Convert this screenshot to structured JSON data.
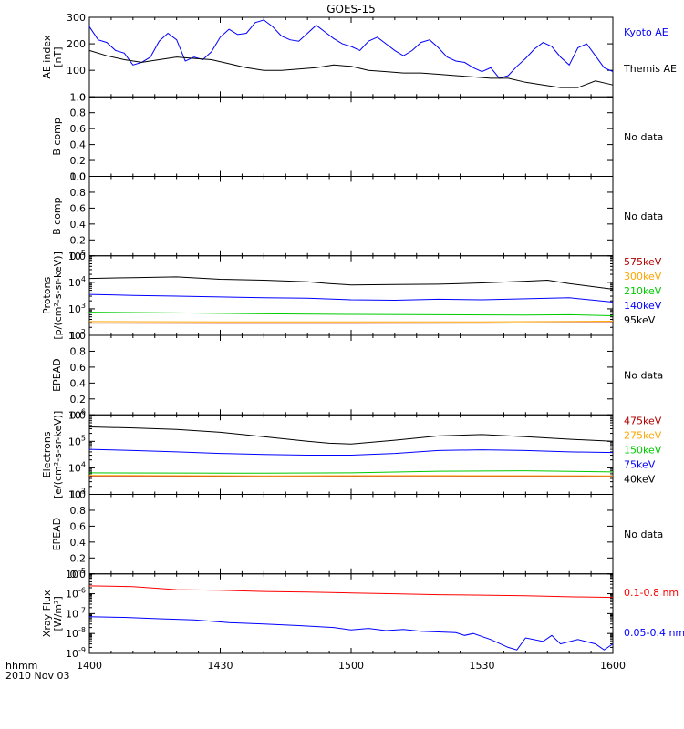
{
  "title": "GOES-15",
  "time_axis": {
    "unit_label": "hhmm",
    "date_label": "2010 Nov 03",
    "ticks": [
      {
        "t": 0,
        "label": "1400"
      },
      {
        "t": 30,
        "label": "1430"
      },
      {
        "t": 60,
        "label": "1500"
      },
      {
        "t": 90,
        "label": "1530"
      },
      {
        "t": 120,
        "label": "1600"
      }
    ]
  },
  "colors": {
    "black": "#000000",
    "blue": "#0000ff",
    "green": "#00cc00",
    "orange": "#ffa500",
    "red": "#cc0000",
    "darkred": "#b00000",
    "xray_red": "#ff0000"
  },
  "no_data_label": "No data",
  "chart_data": [
    {
      "id": "ae",
      "type": "line",
      "ylabel_lines": [
        "AE index",
        "[nT]"
      ],
      "ylim": [
        0,
        300
      ],
      "yticks": [
        0,
        100,
        200,
        300
      ],
      "ytick_labels": [
        "0",
        "100",
        "200",
        "300"
      ],
      "series": [
        {
          "name": "Kyoto AE",
          "color": "blue",
          "x": [
            0,
            2,
            4,
            6,
            8,
            10,
            12,
            14,
            16,
            18,
            20,
            22,
            24,
            26,
            28,
            30,
            32,
            34,
            36,
            38,
            40,
            42,
            44,
            46,
            48,
            50,
            52,
            54,
            56,
            58,
            60,
            62,
            64,
            66,
            68,
            70,
            72,
            74,
            76,
            78,
            80,
            82,
            84,
            86,
            88,
            90,
            92,
            94,
            96,
            98,
            100,
            102,
            104,
            106,
            108,
            110,
            112,
            114,
            116,
            118,
            120
          ],
          "y": [
            265,
            215,
            205,
            175,
            165,
            120,
            130,
            150,
            210,
            240,
            215,
            135,
            150,
            140,
            170,
            225,
            255,
            235,
            240,
            280,
            290,
            265,
            230,
            215,
            210,
            240,
            270,
            245,
            220,
            200,
            190,
            175,
            210,
            225,
            200,
            175,
            155,
            175,
            205,
            215,
            185,
            150,
            135,
            130,
            110,
            95,
            110,
            70,
            80,
            115,
            145,
            180,
            205,
            190,
            150,
            120,
            185,
            200,
            155,
            110,
            95
          ]
        },
        {
          "name": "Themis AE",
          "color": "black",
          "x": [
            0,
            4,
            8,
            12,
            16,
            20,
            24,
            28,
            32,
            36,
            40,
            44,
            48,
            52,
            56,
            60,
            64,
            68,
            72,
            76,
            80,
            84,
            88,
            92,
            96,
            100,
            104,
            108,
            112,
            116,
            120
          ],
          "y": [
            175,
            155,
            140,
            130,
            140,
            150,
            145,
            140,
            125,
            110,
            100,
            100,
            105,
            110,
            120,
            115,
            100,
            95,
            90,
            90,
            85,
            80,
            75,
            70,
            70,
            55,
            45,
            35,
            35,
            60,
            45
          ]
        }
      ]
    },
    {
      "id": "b1",
      "type": "line",
      "no_data": true,
      "ylabel_lines": [
        "B comp"
      ],
      "ylim": [
        0,
        1
      ],
      "yticks": [
        0,
        0.2,
        0.4,
        0.6,
        0.8,
        1.0
      ],
      "ytick_labels": [
        "0.0",
        "0.2",
        "0.4",
        "0.6",
        "0.8",
        "1.0"
      ]
    },
    {
      "id": "b2",
      "type": "line",
      "no_data": true,
      "ylabel_lines": [
        "B comp"
      ],
      "ylim": [
        0,
        1
      ],
      "yticks": [
        0,
        0.2,
        0.4,
        0.6,
        0.8,
        1.0
      ],
      "ytick_labels": [
        "0.0",
        "0.2",
        "0.4",
        "0.6",
        "0.8",
        "1.0"
      ]
    },
    {
      "id": "protons",
      "type": "line",
      "log": true,
      "ylabel_lines": [
        "Protons",
        "[p/(cm²-s-sr-keV)]"
      ],
      "ylim": [
        100,
        100000
      ],
      "yticks": [
        100,
        1000,
        10000,
        100000
      ],
      "ytick_exponents": [
        "2",
        "3",
        "4",
        "5"
      ],
      "legend": [
        {
          "name": "575keV",
          "color": "darkred"
        },
        {
          "name": "300keV",
          "color": "orange"
        },
        {
          "name": "210keV",
          "color": "green"
        },
        {
          "name": "140keV",
          "color": "blue"
        },
        {
          "name": "95keV",
          "color": "black"
        }
      ],
      "series": [
        {
          "name": "95keV",
          "color": "black",
          "x": [
            0,
            10,
            20,
            30,
            40,
            50,
            55,
            60,
            70,
            80,
            90,
            100,
            105,
            110,
            120
          ],
          "y": [
            14000,
            15000,
            16000,
            13000,
            12000,
            10500,
            9000,
            8000,
            8200,
            8500,
            9500,
            11000,
            12000,
            9000,
            5500
          ]
        },
        {
          "name": "140keV",
          "color": "blue",
          "x": [
            0,
            10,
            20,
            30,
            40,
            50,
            60,
            70,
            80,
            90,
            100,
            110,
            120
          ],
          "y": [
            3500,
            3200,
            3000,
            2800,
            2600,
            2500,
            2200,
            2100,
            2300,
            2200,
            2400,
            2600,
            1800
          ]
        },
        {
          "name": "210keV",
          "color": "green",
          "x": [
            0,
            20,
            40,
            60,
            80,
            100,
            110,
            120
          ],
          "y": [
            750,
            700,
            650,
            620,
            600,
            580,
            600,
            550
          ]
        },
        {
          "name": "300keV",
          "color": "orange",
          "x": [
            0,
            30,
            60,
            90,
            120
          ],
          "y": [
            330,
            320,
            320,
            320,
            340
          ]
        },
        {
          "name": "575keV",
          "color": "darkred",
          "x": [
            0,
            30,
            60,
            90,
            120
          ],
          "y": [
            290,
            285,
            285,
            290,
            300
          ]
        }
      ]
    },
    {
      "id": "epead1",
      "type": "line",
      "no_data": true,
      "ylabel_lines": [
        "EPEAD"
      ],
      "ylim": [
        0,
        1
      ],
      "yticks": [
        0,
        0.2,
        0.4,
        0.6,
        0.8,
        1.0
      ],
      "ytick_labels": [
        "0.0",
        "0.2",
        "0.4",
        "0.6",
        "0.8",
        "1.0"
      ]
    },
    {
      "id": "electrons",
      "type": "line",
      "log": true,
      "ylabel_lines": [
        "Electrons",
        "[e/(cm²-s-sr-keV)]"
      ],
      "ylim": [
        1000,
        1000000
      ],
      "yticks": [
        1000,
        10000,
        100000,
        1000000
      ],
      "ytick_exponents": [
        "3",
        "4",
        "5",
        "6"
      ],
      "legend": [
        {
          "name": "475keV",
          "color": "darkred"
        },
        {
          "name": "275keV",
          "color": "orange"
        },
        {
          "name": "150keV",
          "color": "green"
        },
        {
          "name": "75keV",
          "color": "blue"
        },
        {
          "name": "40keV",
          "color": "black"
        }
      ],
      "series": [
        {
          "name": "40keV",
          "color": "black",
          "x": [
            0,
            10,
            20,
            30,
            40,
            50,
            55,
            60,
            70,
            80,
            90,
            100,
            110,
            120
          ],
          "y": [
            350000,
            320000,
            280000,
            220000,
            150000,
            100000,
            85000,
            80000,
            110000,
            160000,
            180000,
            150000,
            120000,
            100000
          ]
        },
        {
          "name": "75keV",
          "color": "blue",
          "x": [
            0,
            10,
            20,
            30,
            40,
            50,
            60,
            70,
            80,
            90,
            100,
            110,
            120
          ],
          "y": [
            50000,
            45000,
            40000,
            35000,
            32000,
            30000,
            30000,
            35000,
            45000,
            48000,
            45000,
            40000,
            38000
          ]
        },
        {
          "name": "150keV",
          "color": "green",
          "x": [
            0,
            20,
            40,
            60,
            80,
            100,
            120
          ],
          "y": [
            6500,
            6400,
            6300,
            6500,
            7500,
            7800,
            7000
          ]
        },
        {
          "name": "275keV",
          "color": "orange",
          "x": [
            0,
            40,
            80,
            120
          ],
          "y": [
            5200,
            5000,
            5100,
            5000
          ]
        },
        {
          "name": "475keV",
          "color": "darkred",
          "x": [
            0,
            40,
            80,
            120
          ],
          "y": [
            4700,
            4600,
            4650,
            4600
          ]
        }
      ]
    },
    {
      "id": "epead2",
      "type": "line",
      "no_data": true,
      "ylabel_lines": [
        "EPEAD"
      ],
      "ylim": [
        0,
        1
      ],
      "yticks": [
        0,
        0.2,
        0.4,
        0.6,
        0.8,
        1.0
      ],
      "ytick_labels": [
        "0.0",
        "0.2",
        "0.4",
        "0.6",
        "0.8",
        "1.0"
      ]
    },
    {
      "id": "xray",
      "type": "line",
      "log": true,
      "ylabel_lines": [
        "Xray Flux",
        "[W/m²]"
      ],
      "ylim": [
        1e-09,
        1e-05
      ],
      "yticks": [
        1e-09,
        1e-08,
        1e-07,
        1e-06,
        1e-05
      ],
      "ytick_exponents": [
        "-9",
        "-8",
        "-7",
        "-6",
        "-5"
      ],
      "legend": [
        {
          "name": "0.1-0.8 nm",
          "color": "xray_red"
        },
        {
          "name": "0.05-0.4 nm",
          "color": "blue"
        }
      ],
      "series": [
        {
          "name": "0.1-0.8 nm",
          "color": "xray_red",
          "x": [
            0,
            10,
            20,
            30,
            40,
            50,
            60,
            70,
            80,
            90,
            100,
            110,
            120
          ],
          "y": [
            2.5e-06,
            2.3e-06,
            1.6e-06,
            1.5e-06,
            1.3e-06,
            1.2e-06,
            1.1e-06,
            1e-06,
            9e-07,
            8.5e-07,
            8e-07,
            7e-07,
            6.5e-07
          ]
        },
        {
          "name": "0.05-0.4 nm",
          "color": "blue",
          "x": [
            0,
            8,
            16,
            24,
            32,
            40,
            48,
            56,
            60,
            64,
            68,
            72,
            76,
            80,
            84,
            86,
            88,
            92,
            96,
            98,
            100,
            104,
            106,
            108,
            112,
            116,
            118,
            120
          ],
          "y": [
            7e-08,
            6.5e-08,
            5.5e-08,
            4.8e-08,
            3.5e-08,
            3e-08,
            2.5e-08,
            2e-08,
            1.5e-08,
            1.8e-08,
            1.4e-08,
            1.6e-08,
            1.3e-08,
            1.2e-08,
            1.1e-08,
            8e-09,
            1e-08,
            5e-09,
            2e-09,
            1.5e-09,
            6e-09,
            4e-09,
            8e-09,
            3e-09,
            5e-09,
            3e-09,
            1.5e-09,
            3e-09
          ]
        }
      ]
    }
  ]
}
